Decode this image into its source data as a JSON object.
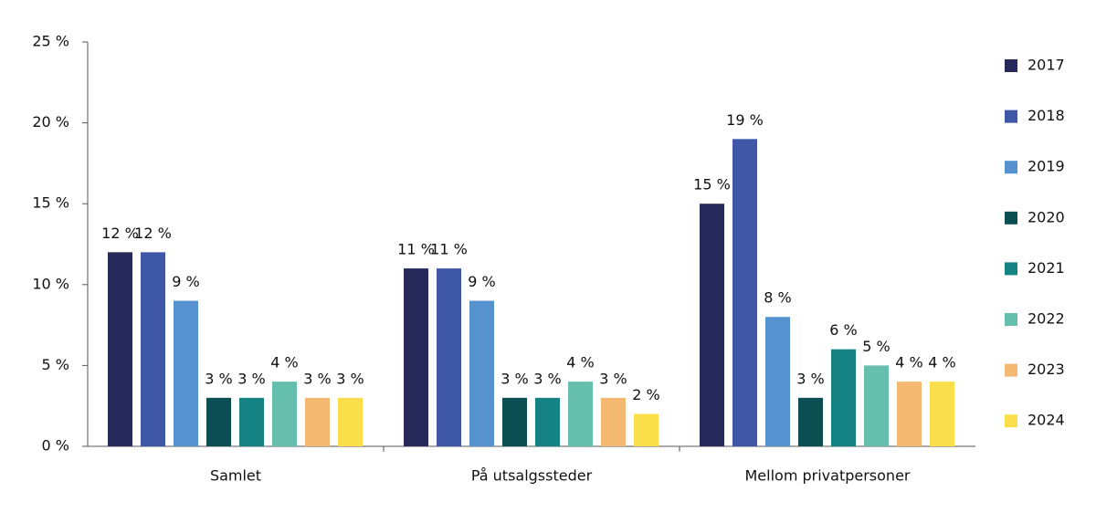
{
  "chart_data": {
    "type": "bar",
    "categories": [
      "Samlet",
      "På utsalgssteder",
      "Mellom privatpersoner"
    ],
    "series": [
      {
        "name": "2017",
        "color": "#26295a",
        "values": [
          12,
          11,
          15
        ],
        "value_labels": [
          "12 %",
          "11 %",
          "15 %"
        ]
      },
      {
        "name": "2018",
        "color": "#3e58a7",
        "values": [
          12,
          11,
          19
        ],
        "value_labels": [
          "12 %",
          "11 %",
          "19 %"
        ]
      },
      {
        "name": "2019",
        "color": "#5592cf",
        "values": [
          9,
          9,
          8
        ],
        "value_labels": [
          "9 %",
          "9 %",
          "8 %"
        ]
      },
      {
        "name": "2020",
        "color": "#0b4f52",
        "values": [
          3,
          3,
          3
        ],
        "value_labels": [
          "3 %",
          "3 %",
          "3 %"
        ]
      },
      {
        "name": "2021",
        "color": "#158384",
        "values": [
          3,
          3,
          6
        ],
        "value_labels": [
          "3 %",
          "3 %",
          "6 %"
        ]
      },
      {
        "name": "2022",
        "color": "#66bfac",
        "values": [
          4,
          4,
          5
        ],
        "value_labels": [
          "4 %",
          "4 %",
          "5 %"
        ]
      },
      {
        "name": "2023",
        "color": "#f3b972",
        "values": [
          3,
          3,
          4
        ],
        "value_labels": [
          "3 %",
          "3 %",
          "4 %"
        ]
      },
      {
        "name": "2024",
        "color": "#fbdf4a",
        "values": [
          3,
          2,
          4
        ],
        "value_labels": [
          "3 %",
          "2 %",
          "4 %"
        ]
      }
    ],
    "ylim": [
      0,
      25
    ],
    "yticks": [
      {
        "value": 0,
        "label": "0 %"
      },
      {
        "value": 5,
        "label": "5 %"
      },
      {
        "value": 10,
        "label": "10 %"
      },
      {
        "value": 15,
        "label": "15 %"
      },
      {
        "value": 20,
        "label": "20 %"
      },
      {
        "value": 25,
        "label": "25 %"
      }
    ],
    "grid": false,
    "legend": "right"
  }
}
